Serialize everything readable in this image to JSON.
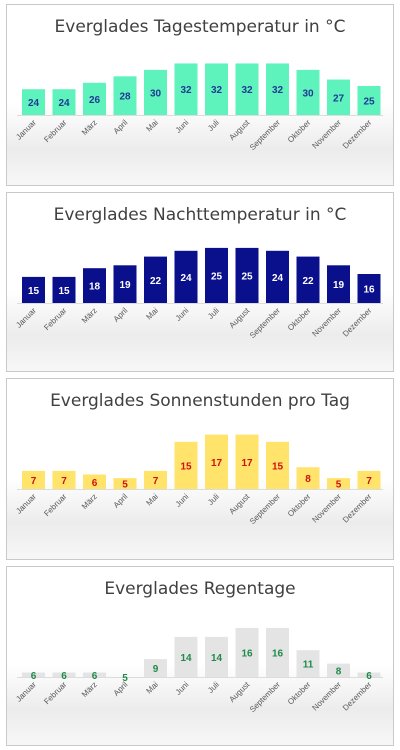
{
  "chart_data": [
    {
      "type": "bar",
      "title": "Everglades Tagestemperatur in °C",
      "categories": [
        "Januar",
        "Februar",
        "März",
        "April",
        "Mai",
        "Juni",
        "Juli",
        "August",
        "September",
        "Oktober",
        "November",
        "Dezember"
      ],
      "values": [
        24,
        24,
        26,
        28,
        30,
        32,
        32,
        32,
        32,
        30,
        27,
        25
      ],
      "ylim": [
        16,
        34
      ],
      "bar_color": "#5ef2bd",
      "label_color": "#1f3a93",
      "grid": false
    },
    {
      "type": "bar",
      "title": "Everglades Nachttemperatur in °C",
      "categories": [
        "Januar",
        "Februar",
        "März",
        "April",
        "Mai",
        "Juni",
        "Juli",
        "August",
        "September",
        "Oktober",
        "November",
        "Dezember"
      ],
      "values": [
        15,
        15,
        18,
        19,
        22,
        24,
        25,
        25,
        24,
        22,
        19,
        16
      ],
      "ylim": [
        6,
        26
      ],
      "bar_color": "#0a0f8c",
      "label_color": "#ffffff",
      "grid": false
    },
    {
      "type": "bar",
      "title": "Everglades Sonnenstunden pro Tag",
      "categories": [
        "Januar",
        "Februar",
        "März",
        "April",
        "Mai",
        "Juni",
        "Juli",
        "August",
        "September",
        "Oktober",
        "November",
        "Dezember"
      ],
      "values": [
        7,
        7,
        6,
        5,
        7,
        15,
        17,
        17,
        15,
        8,
        5,
        7
      ],
      "ylim": [
        2,
        18
      ],
      "bar_color": "#ffe36a",
      "label_color": "#d01010",
      "grid": false
    },
    {
      "type": "bar",
      "title": "Everglades Regentage",
      "categories": [
        "Januar",
        "Februar",
        "März",
        "April",
        "Mai",
        "Juni",
        "Juli",
        "August",
        "September",
        "Oktober",
        "November",
        "Dezember"
      ],
      "values": [
        6,
        6,
        6,
        5,
        9,
        14,
        14,
        16,
        16,
        11,
        8,
        6
      ],
      "ylim": [
        5,
        18
      ],
      "bar_color": "#e4e4e4",
      "label_color": "#1f8a4a",
      "grid": false
    }
  ]
}
